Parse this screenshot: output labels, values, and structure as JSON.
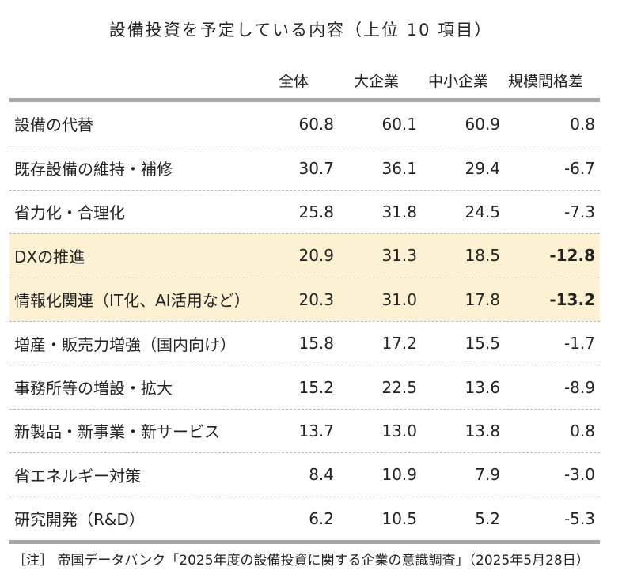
{
  "title": "設備投資を予定している内容（上位 10 項目）",
  "columns": [
    "全体",
    "大企業",
    "中小企業",
    "規模間格差"
  ],
  "highlight_color": "#fdf1d4",
  "chart_data": {
    "type": "table",
    "columns": [
      "全体",
      "大企業",
      "中小企業",
      "規模間格差"
    ],
    "rows": [
      {
        "label": "設備の代替",
        "values": [
          "60.8",
          "60.1",
          "60.9",
          "0.8"
        ]
      },
      {
        "label": "既存設備の維持・補修",
        "values": [
          "30.7",
          "36.1",
          "29.4",
          "-6.7"
        ]
      },
      {
        "label": "省力化・合理化",
        "values": [
          "25.8",
          "31.8",
          "24.5",
          "-7.3"
        ]
      },
      {
        "label": "DXの推進",
        "values": [
          "20.9",
          "31.3",
          "18.5",
          "-12.8"
        ],
        "highlight": true
      },
      {
        "label": "情報化関連（IT化、AI活用など）",
        "values": [
          "20.3",
          "31.0",
          "17.8",
          "-13.2"
        ],
        "highlight": true
      },
      {
        "label": "増産・販売力増強（国内向け）",
        "values": [
          "15.8",
          "17.2",
          "15.5",
          "-1.7"
        ]
      },
      {
        "label": "事務所等の増設・拡大",
        "values": [
          "15.2",
          "22.5",
          "13.6",
          "-8.9"
        ]
      },
      {
        "label": "新製品・新事業・新サービス",
        "values": [
          "13.7",
          "13.0",
          "13.8",
          "0.8"
        ]
      },
      {
        "label": "省エネルギー対策",
        "values": [
          "8.4",
          "10.9",
          "7.9",
          "-3.0"
        ]
      },
      {
        "label": "研究開発（R&D）",
        "values": [
          "6.2",
          "10.5",
          "5.2",
          "-5.3"
        ]
      }
    ]
  },
  "note": "［注］ 帝国データバンク「2025年度の設備投資に関する企業の意識調査」（2025年5月28日）"
}
